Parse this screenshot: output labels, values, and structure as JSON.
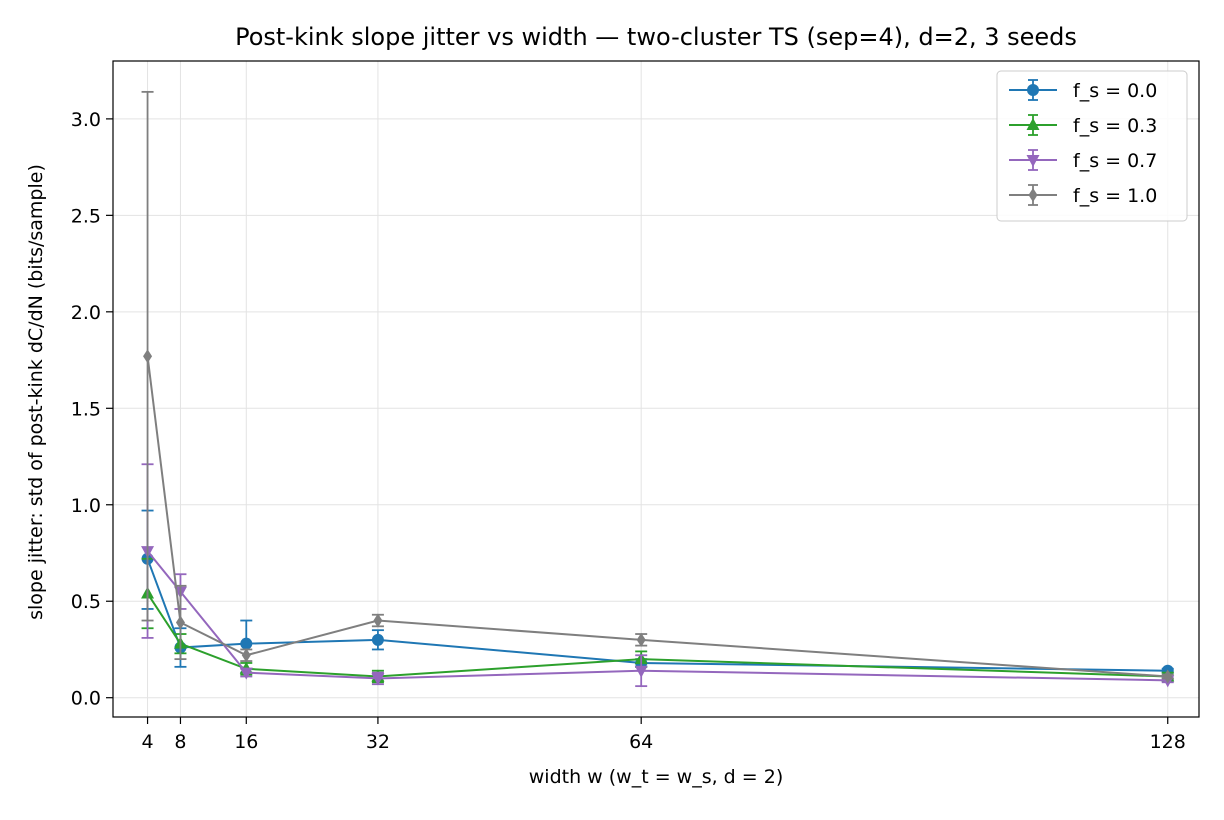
{
  "chart_data": {
    "type": "line",
    "title": "Post-kink slope jitter vs width — two-cluster TS (sep=4), d=2, 3 seeds",
    "xlabel": "width  w  (w_t = w_s, d = 2)",
    "ylabel": "slope jitter: std of post-kink dC/dN (bits/sample)",
    "x": [
      4,
      8,
      16,
      32,
      64,
      128
    ],
    "xticks": [
      4,
      8,
      16,
      32,
      64,
      128
    ],
    "xtick_labels": [
      "4",
      "8",
      "16",
      "32",
      "64",
      "128"
    ],
    "xlim": [
      -0.2,
      131.8
    ],
    "ylim": [
      -0.1,
      3.3
    ],
    "yticks": [
      0.0,
      0.5,
      1.0,
      1.5,
      2.0,
      2.5,
      3.0
    ],
    "ytick_labels": [
      "0.0",
      "0.5",
      "1.0",
      "1.5",
      "2.0",
      "2.5",
      "3.0"
    ],
    "grid": true,
    "legend_position": "top-right",
    "series": [
      {
        "name": "f_s = 0.0",
        "color": "#1f77b4",
        "marker": "circle",
        "values": [
          0.72,
          0.26,
          0.28,
          0.3,
          0.18,
          0.14
        ],
        "err_low": [
          0.46,
          0.16,
          0.13,
          0.25,
          0.16,
          0.13
        ],
        "err_high": [
          0.97,
          0.36,
          0.4,
          0.35,
          0.2,
          0.15
        ]
      },
      {
        "name": "f_s = 0.3",
        "color": "#2ca02c",
        "marker": "triangle-up",
        "values": [
          0.54,
          0.28,
          0.15,
          0.11,
          0.2,
          0.11
        ],
        "err_low": [
          0.36,
          0.23,
          0.12,
          0.08,
          0.16,
          0.09
        ],
        "err_high": [
          0.72,
          0.33,
          0.18,
          0.14,
          0.24,
          0.13
        ]
      },
      {
        "name": "f_s = 0.7",
        "color": "#9467bd",
        "marker": "triangle-down",
        "values": [
          0.76,
          0.55,
          0.13,
          0.1,
          0.14,
          0.09
        ],
        "err_low": [
          0.31,
          0.46,
          0.11,
          0.07,
          0.06,
          0.08
        ],
        "err_high": [
          1.21,
          0.64,
          0.15,
          0.13,
          0.22,
          0.1
        ]
      },
      {
        "name": "f_s = 1.0",
        "color": "#7f7f7f",
        "marker": "diamond",
        "values": [
          1.77,
          0.39,
          0.22,
          0.4,
          0.3,
          0.11
        ],
        "err_low": [
          0.4,
          0.2,
          0.19,
          0.37,
          0.27,
          0.1
        ],
        "err_high": [
          3.14,
          0.58,
          0.25,
          0.43,
          0.33,
          0.12
        ]
      }
    ]
  }
}
